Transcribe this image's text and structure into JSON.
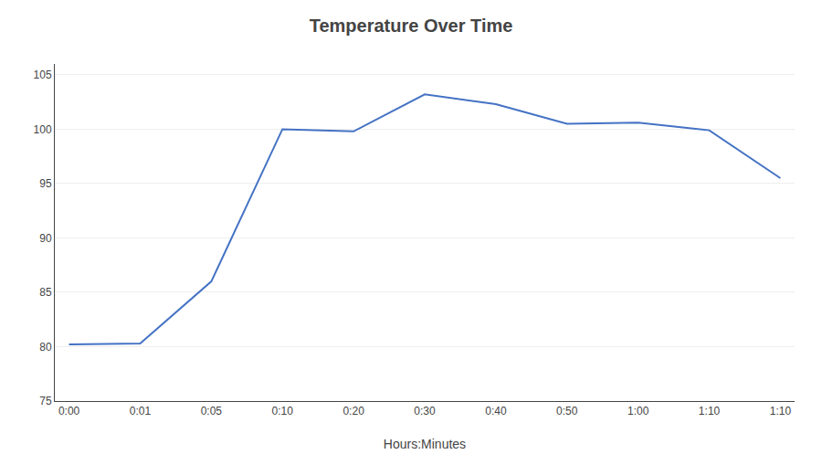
{
  "chart_data": {
    "type": "line",
    "title": "Temperature Over Time",
    "xlabel": "Hours:Minutes",
    "categories": [
      "0:00",
      "0:01",
      "0:05",
      "0:10",
      "0:20",
      "0:30",
      "0:40",
      "0:50",
      "1:00",
      "1:10",
      "1:10"
    ],
    "values": [
      80.2,
      80.3,
      86.0,
      100.0,
      99.8,
      103.2,
      102.3,
      100.5,
      100.6,
      99.9,
      95.5
    ],
    "color": "#4472C4",
    "ylim": [
      75,
      106
    ],
    "yticks": [
      75,
      80,
      85,
      90,
      95,
      100,
      105
    ],
    "grid": true
  }
}
